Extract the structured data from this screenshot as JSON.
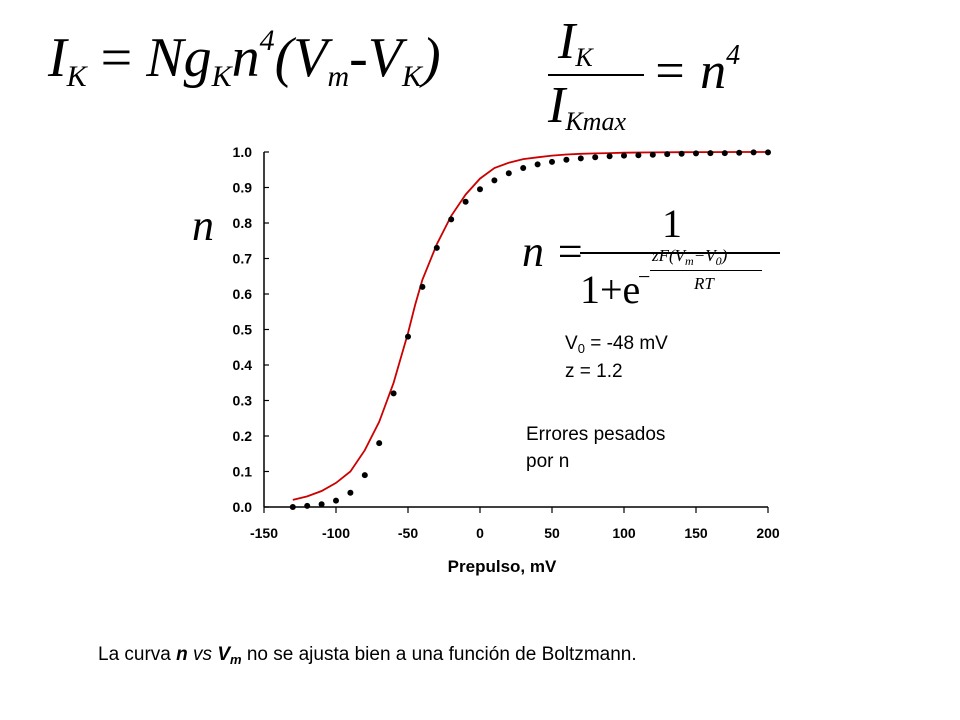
{
  "equations": {
    "eq1": {
      "lhs": "I",
      "lhs_sub": "K",
      "rhs_a": "Ng",
      "rhs_a_sub": "K",
      "rhs_n": "n",
      "rhs_pow": "4",
      "rhs_open": "(V",
      "rhs_m": "m",
      "rhs_mid": "-V",
      "rhs_k": "K",
      "rhs_close": ")"
    },
    "eq2": {
      "num": "I",
      "num_sub": "K",
      "den": "I",
      "den_sub": "Kmax",
      "rhs": "= n",
      "rhs_pow": "4"
    },
    "eq3": {
      "lhs": "n =",
      "num": "1",
      "den": "1+e",
      "exp_minus": "−",
      "exp_num_a": "zF(V",
      "exp_num_m": "m",
      "exp_num_b": "−V",
      "exp_num_0": "0",
      "exp_num_c": ")",
      "exp_den": "RT"
    }
  },
  "params": {
    "v0_label": "V",
    "v0_sub": "0",
    "v0_value": " = -48 mV",
    "z": "z = 1.2"
  },
  "note": {
    "line1": "Errores pesados",
    "line2": "por n"
  },
  "caption": {
    "a": "La curva ",
    "n": "n",
    "b": " vs ",
    "v": "V",
    "v_sub": "m",
    "c": " no se ajusta bien a una función de Boltzmann."
  },
  "chart_data": {
    "type": "scatter",
    "xlabel": "Prepulso, mV",
    "ylabel": "n",
    "xlim": [
      -150,
      200
    ],
    "ylim": [
      0.0,
      1.0
    ],
    "xticks": [
      "-150",
      "-100",
      "-50",
      "0",
      "50",
      "100",
      "150",
      "200"
    ],
    "yticks": [
      "0.0",
      "0.1",
      "0.2",
      "0.3",
      "0.4",
      "0.5",
      "0.6",
      "0.7",
      "0.8",
      "0.9",
      "1.0"
    ],
    "points": {
      "x": [
        -130,
        -120,
        -110,
        -100,
        -90,
        -80,
        -70,
        -60,
        -50,
        -40,
        -30,
        -20,
        -10,
        0,
        10,
        20,
        30,
        40,
        50,
        60,
        70,
        80,
        90,
        100,
        110,
        120,
        130,
        140,
        150,
        160,
        170,
        180,
        190,
        200
      ],
      "y": [
        0.0,
        0.003,
        0.008,
        0.018,
        0.04,
        0.09,
        0.18,
        0.32,
        0.48,
        0.62,
        0.73,
        0.81,
        0.86,
        0.895,
        0.92,
        0.94,
        0.955,
        0.965,
        0.972,
        0.978,
        0.982,
        0.985,
        0.988,
        0.99,
        0.991,
        0.992,
        0.994,
        0.995,
        0.996,
        0.997,
        0.997,
        0.998,
        0.999,
        0.999
      ]
    },
    "fit": {
      "color": "#cc0000",
      "x": [
        -130,
        -120,
        -110,
        -100,
        -90,
        -80,
        -70,
        -60,
        -55,
        -50,
        -45,
        -40,
        -30,
        -20,
        -10,
        0,
        10,
        20,
        30,
        40,
        50,
        60,
        70,
        80,
        90,
        100,
        120,
        140,
        160,
        180,
        200
      ],
      "y": [
        0.02,
        0.03,
        0.045,
        0.068,
        0.1,
        0.16,
        0.24,
        0.35,
        0.42,
        0.49,
        0.57,
        0.64,
        0.74,
        0.82,
        0.88,
        0.925,
        0.955,
        0.97,
        0.98,
        0.985,
        0.99,
        0.993,
        0.995,
        0.996,
        0.997,
        0.998,
        0.999,
        0.9995,
        0.9998,
        0.9999,
        1.0
      ]
    }
  }
}
